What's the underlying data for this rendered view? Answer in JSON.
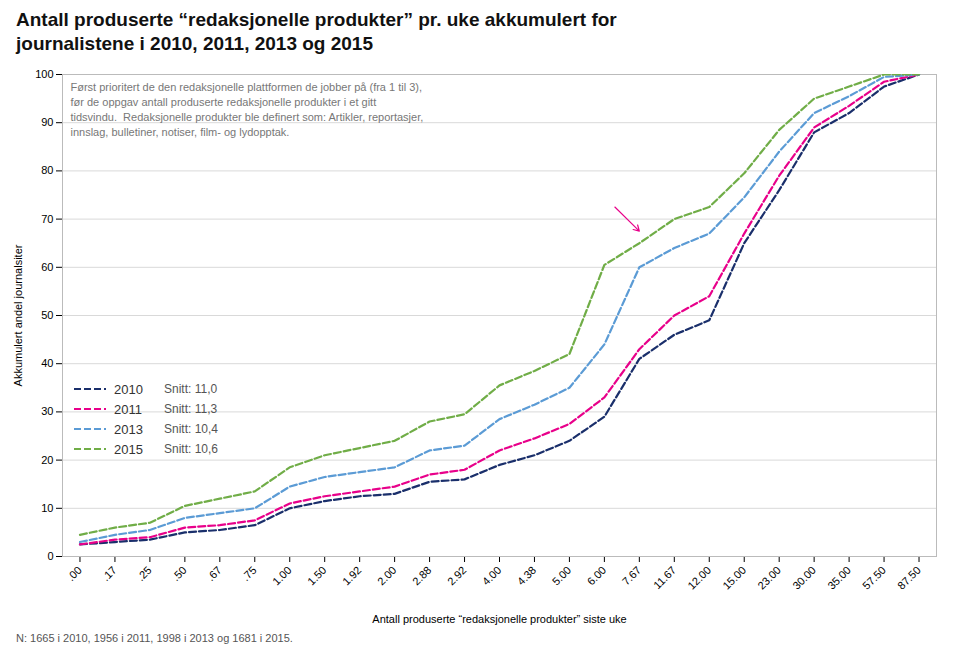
{
  "chart_data": {
    "type": "line",
    "title": "Antall produserte “redaksjonelle produkter” pr. uke akkumulert for\njournalistene i 2010, 2011, 2013 og 2015",
    "xlabel": "Antall produserte “redaksjonelle produkter” siste uke",
    "ylabel": "Akkumulert andel journalsiter",
    "caption": "N: 1665 i 2010, 1956 i 2011, 1998 i 2013 og 1681 i 2015.",
    "annotations": [
      {
        "text": "Først prioritert de den redaksjonelle plattformen de jobber på (fra 1 til 3),\nfør de oppgav antall produserte redaksjonelle produkter i et gitt\ntidsvindu.  Redaksjonelle produkter ble definert som: Artikler, reportasjer,\ninnslag, bulletiner, notiser, film- og lydopptak."
      },
      {
        "arrow": {
          "from": [
            15.3,
            72.5
          ],
          "to": [
            16.0,
            67.5
          ]
        },
        "color": "#e8008a"
      }
    ],
    "categories": [
      ".00",
      ".17",
      ".25",
      ".50",
      ".67",
      ".75",
      "1.00",
      "1.50",
      "1.92",
      "2.00",
      "2.88",
      "2.92",
      "4.00",
      "4.38",
      "5.00",
      "6.00",
      "7.67",
      "11.67",
      "12.00",
      "15.00",
      "23.00",
      "30.00",
      "35.00",
      "57.50",
      "87.50"
    ],
    "series": [
      {
        "name": "2010",
        "color": "#1a2f6b",
        "note": "Snitt: 11,0",
        "values": [
          2.5,
          3.0,
          3.5,
          5.0,
          5.5,
          6.5,
          10.0,
          11.5,
          12.5,
          13.0,
          15.5,
          16.0,
          19.0,
          21.0,
          24.0,
          29.0,
          41.0,
          46.0,
          49.0,
          65.0,
          76.0,
          88.0,
          92.0,
          97.5,
          100.0
        ]
      },
      {
        "name": "2011",
        "color": "#e8008a",
        "note": "Snitt: 11,3",
        "values": [
          2.5,
          3.5,
          4.0,
          6.0,
          6.5,
          7.5,
          11.0,
          12.5,
          13.5,
          14.5,
          17.0,
          18.0,
          22.0,
          24.5,
          27.5,
          33.0,
          43.0,
          50.0,
          54.0,
          67.0,
          79.0,
          89.0,
          93.5,
          98.5,
          100.0
        ]
      },
      {
        "name": "2013",
        "color": "#5b9bd5",
        "note": "Snitt: 10,4",
        "values": [
          3.0,
          4.5,
          5.5,
          8.0,
          9.0,
          10.0,
          14.5,
          16.5,
          17.5,
          18.5,
          22.0,
          23.0,
          28.5,
          31.5,
          35.0,
          44.0,
          60.0,
          64.0,
          67.0,
          74.5,
          84.0,
          92.0,
          95.5,
          99.5,
          100.0
        ]
      },
      {
        "name": "2015",
        "color": "#70ad47",
        "note": "Snitt: 10,6",
        "values": [
          4.5,
          6.0,
          7.0,
          10.5,
          12.0,
          13.5,
          18.5,
          21.0,
          22.5,
          24.0,
          28.0,
          29.5,
          35.5,
          38.5,
          42.0,
          60.5,
          65.0,
          70.0,
          72.5,
          79.5,
          88.5,
          95.0,
          97.5,
          100.0,
          100.0
        ]
      }
    ],
    "ylim": [
      0,
      100
    ],
    "yticks": [
      0,
      10,
      20,
      30,
      40,
      50,
      60,
      70,
      80,
      90,
      100
    ],
    "grid": "y",
    "legend": "lower left",
    "line_style": "dashed"
  }
}
